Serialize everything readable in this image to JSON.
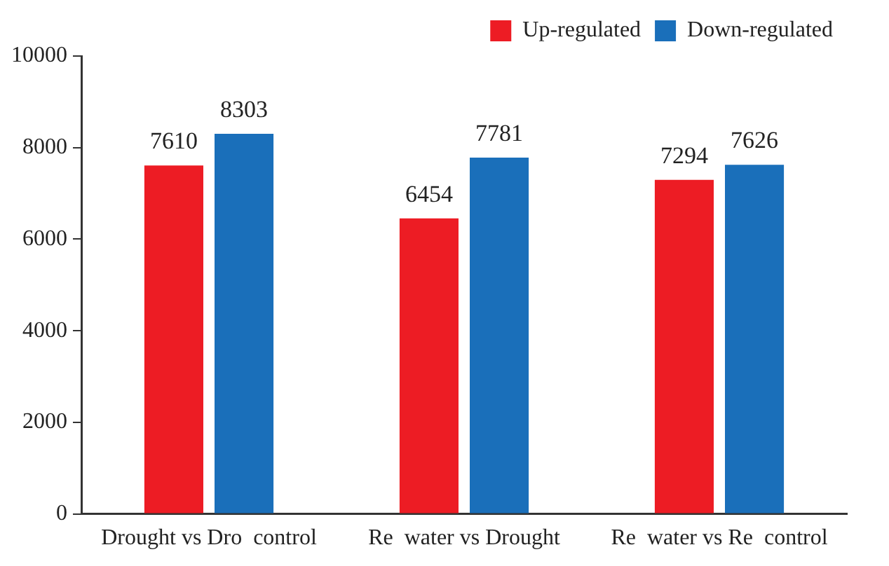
{
  "chart_data": {
    "type": "bar",
    "categories": [
      "Drought vs Dro  control",
      "Re  water vs Drought",
      "Re  water vs Re  control"
    ],
    "series": [
      {
        "name": "Up-regulated",
        "color": "#ed1c24",
        "values": [
          7610,
          6454,
          7294
        ]
      },
      {
        "name": "Down-regulated",
        "color": "#1a6fba",
        "values": [
          8303,
          7781,
          7626
        ]
      }
    ],
    "ylim": [
      0,
      10000
    ],
    "yticks": [
      0,
      2000,
      4000,
      6000,
      8000,
      10000
    ],
    "grid": false,
    "legend": "top right",
    "data_labels": true
  }
}
